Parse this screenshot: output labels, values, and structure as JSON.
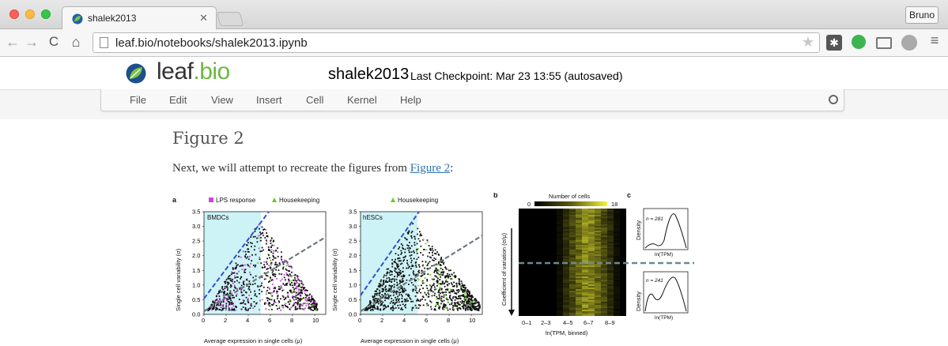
{
  "browser": {
    "tab_title": "shalek2013",
    "url": "leaf.bio/notebooks/shalek2013.ipynb",
    "user_button": "Bruno"
  },
  "header": {
    "logo_text_main": "leaf",
    "logo_text_dot": ".bio",
    "notebook_name": "shalek2013",
    "checkpoint": "Last Checkpoint: Mar 23 13:55 (autosaved)"
  },
  "menu": {
    "items": [
      "File",
      "Edit",
      "View",
      "Insert",
      "Cell",
      "Kernel",
      "Help"
    ]
  },
  "content": {
    "heading": "Figure 2",
    "para_before": "Next, we will attempt to recreate the figures from ",
    "para_link": "Figure 2",
    "para_after": ":"
  },
  "figure": {
    "panel_a_label": "a",
    "panel_b_label": "b",
    "panel_c_label": "c",
    "legend_lps": "LPS response",
    "legend_housekeeping": "Housekeeping",
    "plot1_title": "BMDCs",
    "plot2_title": "hESCs",
    "ylabel": "Single cell variability (σ)",
    "xlabel": "Average expression in single cells (μ)",
    "heatmap_colorbar_label": "Number of cells",
    "heatmap_colorbar_min": "0",
    "heatmap_colorbar_max": "18",
    "heatmap_ylabel": "Coefficient of variation (σ/μ)",
    "heatmap_xlabel": "ln(TPM, binned)",
    "heatmap_xticks": [
      "0–1",
      "2–3",
      "4–5",
      "6–7",
      "8–9"
    ],
    "density_ylabel": "Density",
    "density_xlabel": "ln(TPM)",
    "density_top_n": "n = 281",
    "density_bottom_n": "n = 241",
    "colors": {
      "lps": "#cc44dd",
      "housekeeping": "#66cc22",
      "cyan_region": "#cdf3f7"
    }
  },
  "chart_data": [
    {
      "type": "scatter",
      "title": "BMDCs",
      "xlabel": "Average expression in single cells (μ)",
      "ylabel": "Single cell variability (σ)",
      "xlim": [
        0,
        11
      ],
      "ylim": [
        0,
        3.5
      ],
      "xticks": [
        0,
        2,
        4,
        6,
        8,
        10
      ],
      "yticks": [
        0.0,
        0.5,
        1.0,
        1.5,
        2.0,
        2.5,
        3.0,
        3.5
      ],
      "series": [
        {
          "name": "LPS response",
          "color": "#cc44dd"
        },
        {
          "name": "Housekeeping",
          "color": "#66cc22"
        }
      ]
    },
    {
      "type": "scatter",
      "title": "hESCs",
      "xlabel": "Average expression in single cells (μ)",
      "ylabel": "Single cell variability (σ)",
      "xlim": [
        0,
        11
      ],
      "ylim": [
        0,
        3.5
      ],
      "xticks": [
        0,
        2,
        4,
        6,
        8,
        10
      ],
      "yticks": [
        0.0,
        0.5,
        1.0,
        1.5,
        2.0,
        2.5,
        3.0,
        3.5
      ],
      "series": [
        {
          "name": "Housekeeping",
          "color": "#66cc22"
        }
      ]
    },
    {
      "type": "heatmap",
      "xlabel": "ln(TPM, binned)",
      "ylabel": "Coefficient of variation (σ/μ)",
      "categories": [
        "0–1",
        "2–3",
        "4–5",
        "6–7",
        "8–9"
      ],
      "colorbar": {
        "label": "Number of cells",
        "min": 0,
        "max": 18
      }
    }
  ]
}
